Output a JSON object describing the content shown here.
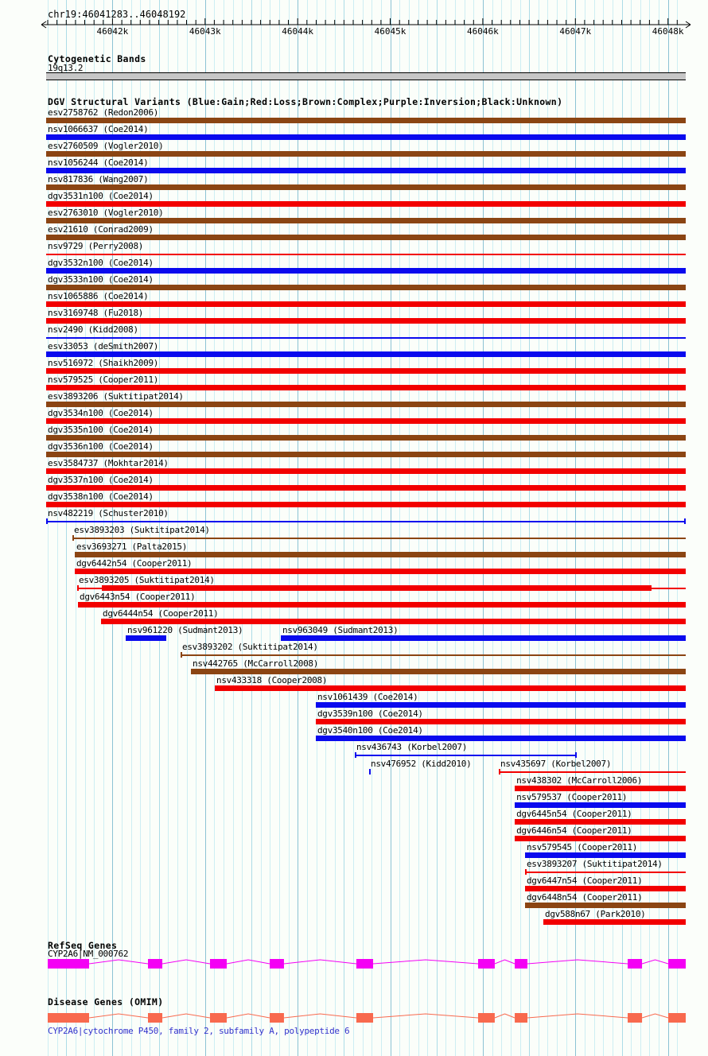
{
  "colors": {
    "background": "#FBFEFA",
    "grid_minor": "#CDEEF3",
    "grid_mid": "#ACDCE7",
    "grid_major": "#8CC3D4",
    "gain": "#0A0AEE",
    "loss": "#F20000",
    "complex": "#8B4513",
    "inversion": "#800080",
    "unknown": "#000000",
    "refseq_gene": "#F400F4",
    "omim_gene": "#F8694E",
    "band_fill": "#C6C6C6",
    "omim_caption_blue": "#3434CC",
    "ruler": "#000000"
  },
  "header": {
    "region_label": "chr19:46041283..46048192"
  },
  "cytoband": {
    "title": "Cytogenetic Bands",
    "band_name": "19q13.2"
  },
  "dgv_title": "DGV Structural Variants (Blue:Gain;Red:Loss;Brown:Complex;Purple:Inversion;Black:Unknown)",
  "refseq": {
    "title": "RefSeq Genes",
    "gene_label": "CYP2A6|NM_000762"
  },
  "omim": {
    "title": "Disease Genes (OMIM)",
    "caption": "CYP2A6|cytochrome P450, family 2, subfamily A, polypeptide 6"
  },
  "chart_data": {
    "type": "bar",
    "title": "DGV Structural Variants (Blue:Gain;Red:Loss;Brown:Complex;Purple:Inversion;Black:Unknown)",
    "axis": {
      "chrom": "chr19",
      "start": 46041283,
      "end": 46048192,
      "major_tick_step": 1000,
      "minor_tick_step": 100,
      "tick_labels": [
        "46042k",
        "46043k",
        "46044k",
        "46045k",
        "46046k",
        "46047k",
        "46048k"
      ],
      "tick_positions": [
        46042000,
        46043000,
        46044000,
        46045000,
        46046000,
        46047000,
        46048000
      ]
    },
    "cytoband": {
      "name": "19q13.2",
      "start": 46041283,
      "end": 46048192
    },
    "variants": [
      {
        "features": [
          {
            "id": "esv2758762",
            "label": "esv2758762 (Redon2006)",
            "color": "complex",
            "style": "thick",
            "start": 46041283,
            "end": 46048192,
            "brackets": "none"
          }
        ]
      },
      {
        "features": [
          {
            "id": "nsv1066637",
            "label": "nsv1066637 (Coe2014)",
            "color": "gain",
            "style": "thick",
            "start": 46041283,
            "end": 46048192,
            "brackets": "none"
          }
        ]
      },
      {
        "features": [
          {
            "id": "esv2760509",
            "label": "esv2760509 (Vogler2010)",
            "color": "complex",
            "style": "thick",
            "start": 46041283,
            "end": 46048192,
            "brackets": "none"
          }
        ]
      },
      {
        "features": [
          {
            "id": "nsv1056244",
            "label": "nsv1056244 (Coe2014)",
            "color": "gain",
            "style": "thick",
            "start": 46041283,
            "end": 46048192,
            "brackets": "none"
          }
        ]
      },
      {
        "features": [
          {
            "id": "nsv817836",
            "label": "nsv817836 (Wang2007)",
            "color": "complex",
            "style": "thick",
            "start": 46041283,
            "end": 46048192,
            "brackets": "none"
          }
        ]
      },
      {
        "features": [
          {
            "id": "dgv3531n100",
            "label": "dgv3531n100 (Coe2014)",
            "color": "loss",
            "style": "thick",
            "start": 46041283,
            "end": 46048192,
            "brackets": "none"
          }
        ]
      },
      {
        "features": [
          {
            "id": "esv2763010",
            "label": "esv2763010 (Vogler2010)",
            "color": "complex",
            "style": "thick",
            "start": 46041283,
            "end": 46048192,
            "brackets": "none"
          }
        ]
      },
      {
        "features": [
          {
            "id": "esv21610",
            "label": "esv21610 (Conrad2009)",
            "color": "complex",
            "style": "thick",
            "start": 46041283,
            "end": 46048192,
            "brackets": "none"
          }
        ]
      },
      {
        "features": [
          {
            "id": "nsv9729",
            "label": "nsv9729 (Perry2008)",
            "color": "loss",
            "style": "thin",
            "start": 46041283,
            "end": 46048192,
            "brackets": "none"
          }
        ]
      },
      {
        "features": [
          {
            "id": "dgv3532n100",
            "label": "dgv3532n100 (Coe2014)",
            "color": "gain",
            "style": "thick",
            "start": 46041283,
            "end": 46048192,
            "brackets": "none"
          }
        ]
      },
      {
        "features": [
          {
            "id": "dgv3533n100",
            "label": "dgv3533n100 (Coe2014)",
            "color": "complex",
            "style": "thick",
            "start": 46041283,
            "end": 46048192,
            "brackets": "none"
          }
        ]
      },
      {
        "features": [
          {
            "id": "nsv1065886",
            "label": "nsv1065886 (Coe2014)",
            "color": "loss",
            "style": "thick",
            "start": 46041283,
            "end": 46048192,
            "brackets": "none"
          }
        ]
      },
      {
        "features": [
          {
            "id": "nsv3169748",
            "label": "nsv3169748 (Fu2018)",
            "color": "loss",
            "style": "thick",
            "start": 46041283,
            "end": 46048192,
            "brackets": "none"
          }
        ]
      },
      {
        "features": [
          {
            "id": "nsv2490",
            "label": "nsv2490 (Kidd2008)",
            "color": "gain",
            "style": "thin",
            "start": 46041283,
            "end": 46048192,
            "brackets": "none"
          }
        ]
      },
      {
        "features": [
          {
            "id": "esv33053",
            "label": "esv33053 (deSmith2007)",
            "color": "gain",
            "style": "thick",
            "start": 46041283,
            "end": 46048192,
            "brackets": "none"
          }
        ]
      },
      {
        "features": [
          {
            "id": "nsv516972",
            "label": "nsv516972 (Shaikh2009)",
            "color": "loss",
            "style": "thick",
            "start": 46041283,
            "end": 46048192,
            "brackets": "none"
          }
        ]
      },
      {
        "features": [
          {
            "id": "nsv579525",
            "label": "nsv579525 (Cooper2011)",
            "color": "loss",
            "style": "thick",
            "start": 46041283,
            "end": 46048192,
            "brackets": "none"
          }
        ]
      },
      {
        "features": [
          {
            "id": "esv3893206",
            "label": "esv3893206 (Suktitipat2014)",
            "color": "complex",
            "style": "thick",
            "start": 46041283,
            "end": 46048192,
            "brackets": "none"
          }
        ]
      },
      {
        "features": [
          {
            "id": "dgv3534n100",
            "label": "dgv3534n100 (Coe2014)",
            "color": "loss",
            "style": "thick",
            "start": 46041283,
            "end": 46048192,
            "brackets": "none"
          }
        ]
      },
      {
        "features": [
          {
            "id": "dgv3535n100",
            "label": "dgv3535n100 (Coe2014)",
            "color": "complex",
            "style": "thick",
            "start": 46041283,
            "end": 46048192,
            "brackets": "none"
          }
        ]
      },
      {
        "features": [
          {
            "id": "dgv3536n100",
            "label": "dgv3536n100 (Coe2014)",
            "color": "complex",
            "style": "thick",
            "start": 46041283,
            "end": 46048192,
            "brackets": "none"
          }
        ]
      },
      {
        "features": [
          {
            "id": "esv3584737",
            "label": "esv3584737 (Mokhtar2014)",
            "color": "loss",
            "style": "thick",
            "start": 46041283,
            "end": 46048192,
            "brackets": "none"
          }
        ]
      },
      {
        "features": [
          {
            "id": "dgv3537n100",
            "label": "dgv3537n100 (Coe2014)",
            "color": "loss",
            "style": "thick",
            "start": 46041283,
            "end": 46048192,
            "brackets": "none"
          }
        ]
      },
      {
        "features": [
          {
            "id": "dgv3538n100",
            "label": "dgv3538n100 (Coe2014)",
            "color": "loss",
            "style": "thick",
            "start": 46041283,
            "end": 46048192,
            "brackets": "none"
          }
        ]
      },
      {
        "features": [
          {
            "id": "nsv482219",
            "label": "nsv482219 (Schuster2010)",
            "color": "gain",
            "style": "thin",
            "start": 46041283,
            "end": 46048192,
            "brackets": "both"
          }
        ]
      },
      {
        "features": [
          {
            "id": "esv3893203",
            "label": "esv3893203 (Suktitipat2014)",
            "color": "complex",
            "style": "thin",
            "start": 46041567,
            "end": 46048192,
            "brackets": "left"
          }
        ]
      },
      {
        "features": [
          {
            "id": "esv3693271",
            "label": "esv3693271 (Palta2015)",
            "color": "complex",
            "style": "thick",
            "start": 46041592,
            "end": 46048192,
            "brackets": "none"
          }
        ]
      },
      {
        "features": [
          {
            "id": "dgv6442n54",
            "label": "dgv6442n54 (Cooper2011)",
            "color": "loss",
            "style": "thick",
            "start": 46041592,
            "end": 46048192,
            "brackets": "none"
          }
        ]
      },
      {
        "features": [
          {
            "id": "esv3893205",
            "label": "esv3893205 (Suktitipat2014)",
            "color": "loss",
            "style": "segmented",
            "start": 46041618,
            "end": 46048192,
            "brackets": "left",
            "segments": [
              {
                "start": 46041618,
                "end": 46041885,
                "style": "thin"
              },
              {
                "start": 46041885,
                "end": 46047823,
                "style": "thick"
              },
              {
                "start": 46047823,
                "end": 46048192,
                "style": "thin"
              }
            ]
          }
        ]
      },
      {
        "features": [
          {
            "id": "dgv6443n54",
            "label": "dgv6443n54 (Cooper2011)",
            "color": "loss",
            "style": "thick",
            "start": 46041627,
            "end": 46048192,
            "brackets": "none"
          }
        ]
      },
      {
        "features": [
          {
            "id": "dgv6444n54",
            "label": "dgv6444n54 (Cooper2011)",
            "color": "loss",
            "style": "thick",
            "start": 46041876,
            "end": 46048192,
            "brackets": "none"
          }
        ]
      },
      {
        "features": [
          {
            "id": "nsv961220",
            "label": "nsv961220 (Sudmant2013)",
            "color": "gain",
            "style": "thick",
            "start": 46042142,
            "end": 46042581,
            "brackets": "none"
          },
          {
            "id": "nsv963049",
            "label": "nsv963049 (Sudmant2013)",
            "color": "gain",
            "style": "thick",
            "start": 46043818,
            "end": 46048192,
            "brackets": "none"
          }
        ]
      },
      {
        "features": [
          {
            "id": "esv3893202",
            "label": "esv3893202 (Suktitipat2014)",
            "color": "complex",
            "style": "thin",
            "start": 46042735,
            "end": 46048192,
            "brackets": "left"
          }
        ]
      },
      {
        "features": [
          {
            "id": "nsv442765",
            "label": "nsv442765 (McCarroll2008)",
            "color": "complex",
            "style": "thick",
            "start": 46042847,
            "end": 46048192,
            "brackets": "none"
          }
        ]
      },
      {
        "features": [
          {
            "id": "nsv433318",
            "label": "nsv433318 (Cooper2008)",
            "color": "loss",
            "style": "thick",
            "start": 46043105,
            "end": 46048192,
            "brackets": "none"
          }
        ]
      },
      {
        "features": [
          {
            "id": "nsv1061439",
            "label": "nsv1061439 (Coe2014)",
            "color": "gain",
            "style": "thick",
            "start": 46044196,
            "end": 46048192,
            "brackets": "none"
          }
        ]
      },
      {
        "features": [
          {
            "id": "dgv3539n100",
            "label": "dgv3539n100 (Coe2014)",
            "color": "loss",
            "style": "thick",
            "start": 46044196,
            "end": 46048192,
            "brackets": "none"
          }
        ]
      },
      {
        "features": [
          {
            "id": "dgv3540n100",
            "label": "dgv3540n100 (Coe2014)",
            "color": "gain",
            "style": "thick",
            "start": 46044196,
            "end": 46048192,
            "brackets": "none"
          }
        ]
      },
      {
        "features": [
          {
            "id": "nsv436743",
            "label": "nsv436743 (Korbel2007)",
            "color": "gain",
            "style": "thin",
            "start": 46044617,
            "end": 46047015,
            "brackets": "both"
          }
        ]
      },
      {
        "features": [
          {
            "id": "nsv476952",
            "label": "nsv476952 (Kidd2010)",
            "color": "gain",
            "style": "point",
            "start": 46044772,
            "end": 46044772,
            "brackets": "none"
          },
          {
            "id": "nsv435697",
            "label": "nsv435697 (Korbel2007)",
            "color": "loss",
            "style": "thin",
            "start": 46046173,
            "end": 46048192,
            "brackets": "left"
          }
        ]
      },
      {
        "features": [
          {
            "id": "nsv438302",
            "label": "nsv438302 (McCarroll2006)",
            "color": "loss",
            "style": "thick",
            "start": 46046345,
            "end": 46048192,
            "brackets": "none"
          }
        ]
      },
      {
        "features": [
          {
            "id": "nsv579537",
            "label": "nsv579537 (Cooper2011)",
            "color": "gain",
            "style": "thick",
            "start": 46046345,
            "end": 46048192,
            "brackets": "none"
          }
        ]
      },
      {
        "features": [
          {
            "id": "dgv6445n54",
            "label": "dgv6445n54 (Cooper2011)",
            "color": "loss",
            "style": "thick",
            "start": 46046345,
            "end": 46048192,
            "brackets": "none"
          }
        ]
      },
      {
        "features": [
          {
            "id": "dgv6446n54",
            "label": "dgv6446n54 (Cooper2011)",
            "color": "loss",
            "style": "thick",
            "start": 46046345,
            "end": 46048192,
            "brackets": "none"
          }
        ]
      },
      {
        "features": [
          {
            "id": "nsv579545",
            "label": "nsv579545 (Cooper2011)",
            "color": "gain",
            "style": "thick",
            "start": 46046456,
            "end": 46048192,
            "brackets": "none"
          }
        ]
      },
      {
        "features": [
          {
            "id": "esv3893207",
            "label": "esv3893207 (Suktitipat2014)",
            "color": "loss",
            "style": "thin",
            "start": 46046456,
            "end": 46048192,
            "brackets": "left"
          }
        ]
      },
      {
        "features": [
          {
            "id": "dgv6447n54",
            "label": "dgv6447n54 (Cooper2011)",
            "color": "loss",
            "style": "thick",
            "start": 46046456,
            "end": 46048192,
            "brackets": "none"
          }
        ]
      },
      {
        "features": [
          {
            "id": "dgv6448n54",
            "label": "dgv6448n54 (Cooper2011)",
            "color": "complex",
            "style": "thick",
            "start": 46046456,
            "end": 46048192,
            "brackets": "none"
          }
        ]
      },
      {
        "features": [
          {
            "id": "dgv588n67",
            "label": "dgv588n67 (Park2010)",
            "color": "loss",
            "style": "thick",
            "start": 46046654,
            "end": 46048192,
            "brackets": "none"
          }
        ]
      }
    ],
    "gene": {
      "name": "CYP2A6",
      "transcript": "NM_000762",
      "start": 46041300,
      "end": 46048192,
      "exons": [
        [
          46041300,
          46041747
        ],
        [
          46042383,
          46042538
        ],
        [
          46043053,
          46043234
        ],
        [
          46043698,
          46043852
        ],
        [
          46044634,
          46044815
        ],
        [
          46045949,
          46046129
        ],
        [
          46046345,
          46046482
        ],
        [
          46047565,
          46047720
        ],
        [
          46048003,
          46048192
        ]
      ]
    }
  }
}
